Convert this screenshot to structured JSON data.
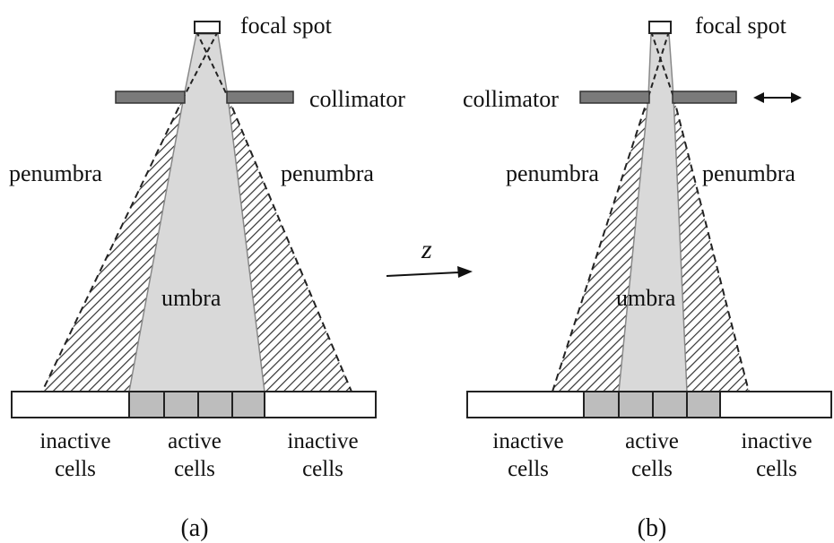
{
  "panel_a": {
    "focal_spot": "focal spot",
    "collimator": "collimator",
    "penumbra_left": "penumbra",
    "penumbra_right": "penumbra",
    "umbra": "umbra",
    "inactive_left": [
      "inactive",
      "cells"
    ],
    "active": [
      "active",
      "cells"
    ],
    "inactive_right": [
      "inactive",
      "cells"
    ],
    "caption": "(a)"
  },
  "panel_b": {
    "focal_spot": "focal spot",
    "collimator": "collimator",
    "penumbra_left": "penumbra",
    "penumbra_right": "penumbra",
    "umbra": "umbra",
    "inactive_left": [
      "inactive",
      "cells"
    ],
    "active": [
      "active",
      "cells"
    ],
    "inactive_right": [
      "inactive",
      "cells"
    ],
    "caption": "(b)"
  },
  "axis_label": "z",
  "colors": {
    "beam": "#d9d9d9",
    "collimator": "#7a7a7a",
    "active_cell": "#bdbdbd",
    "outline": "#222222"
  }
}
